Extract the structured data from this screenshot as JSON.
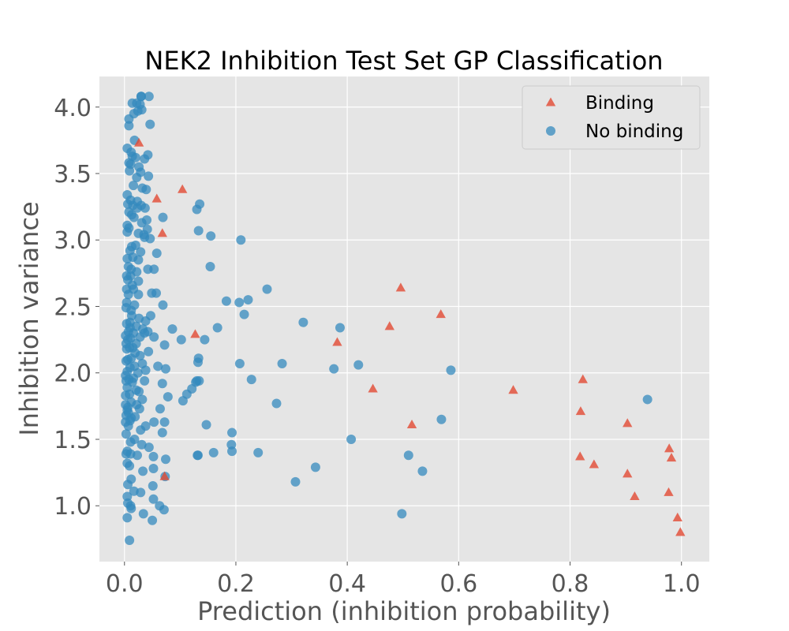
{
  "chart_data": {
    "type": "scatter",
    "title": "NEK2 Inhibition Test Set GP Classification",
    "xlabel": "Prediction (inhibition probability)",
    "ylabel": "Inhibition variance",
    "xlim": [
      -0.045,
      1.05
    ],
    "ylim": [
      0.58,
      4.23
    ],
    "xticks": [
      0.0,
      0.2,
      0.4,
      0.6,
      0.8,
      1.0
    ],
    "xtick_labels": [
      "0.0",
      "0.2",
      "0.4",
      "0.6",
      "0.8",
      "1.0"
    ],
    "yticks": [
      1.0,
      1.5,
      2.0,
      2.5,
      3.0,
      3.5,
      4.0
    ],
    "ytick_labels": [
      "1.0",
      "1.5",
      "2.0",
      "2.5",
      "3.0",
      "3.5",
      "4.0"
    ],
    "grid": true,
    "legend_position": "top-right",
    "series": [
      {
        "name": "Binding",
        "marker": "triangle",
        "color": "#E24A33",
        "x": [
          0.026,
          0.058,
          0.104,
          0.068,
          0.127,
          0.072,
          0.496,
          0.568,
          0.476,
          0.382,
          0.446,
          0.516,
          0.698,
          0.823,
          0.819,
          0.903,
          0.818,
          0.843,
          0.903,
          0.916,
          0.978,
          0.982,
          0.977,
          0.993,
          0.998
        ],
        "y": [
          3.73,
          3.31,
          3.38,
          3.05,
          2.29,
          1.22,
          2.64,
          2.44,
          2.35,
          2.23,
          1.88,
          1.61,
          1.87,
          1.95,
          1.71,
          1.62,
          1.37,
          1.31,
          1.24,
          1.07,
          1.43,
          1.36,
          1.1,
          0.91,
          0.8
        ]
      },
      {
        "name": "No binding",
        "marker": "circle",
        "color": "#348ABD",
        "x": [
          0.03,
          0.03,
          0.044,
          0.014,
          0.022,
          0.028,
          0.008,
          0.031,
          0.046,
          0.017,
          0.024,
          0.008,
          0.018,
          0.042,
          0.005,
          0.012,
          0.036,
          0.014,
          0.02,
          0.008,
          0.011,
          0.026,
          0.043,
          0.029,
          0.022,
          0.009,
          0.032,
          0.005,
          0.016,
          0.039,
          0.023,
          0.011,
          0.006,
          0.03,
          0.015,
          0.023,
          0.008,
          0.013,
          0.037,
          0.017,
          0.04,
          0.031,
          0.005,
          0.008,
          0.041,
          0.005,
          0.025,
          0.035,
          0.036,
          0.046,
          0.013,
          0.02,
          0.01,
          0.029,
          0.005,
          0.015,
          0.058,
          0.007,
          0.025,
          0.069,
          0.012,
          0.004,
          0.022,
          0.042,
          0.053,
          0.011,
          0.006,
          0.025,
          0.004,
          0.014,
          0.016,
          0.025,
          0.007,
          0.004,
          0.049,
          0.057,
          0.018,
          0.003,
          0.012,
          0.069,
          0.013,
          0.026,
          0.004,
          0.01,
          0.038,
          0.021,
          0.047,
          0.01,
          0.033,
          0.007,
          0.016,
          0.002,
          0.036,
          0.042,
          0.028,
          0.011,
          0.006,
          0.053,
          0.003,
          0.021,
          0.072,
          0.015,
          0.009,
          0.004,
          0.043,
          0.019,
          0.028,
          0.012,
          0.003,
          0.006,
          0.032,
          0.018,
          0.074,
          0.01,
          0.005,
          0.002,
          0.038,
          0.024,
          0.016,
          0.06,
          0.008,
          0.003,
          0.036,
          0.014,
          0.068,
          0.021,
          0.005,
          0.026,
          0.009,
          0.002,
          0.032,
          0.078,
          0.012,
          0.002,
          0.022,
          0.006,
          0.005,
          0.027,
          0.064,
          0.007,
          0.072,
          0.003,
          0.019,
          0.012,
          0.01,
          0.038,
          0.002,
          0.053,
          0.007,
          0.029,
          0.003,
          0.068,
          0.018,
          0.011,
          0.031,
          0.044,
          0.005,
          0.003,
          0.011,
          0.023,
          0.052,
          0.074,
          0.005,
          0.009,
          0.052,
          0.033,
          0.073,
          0.012,
          0.006,
          0.051,
          0.017,
          0.005,
          0.135,
          0.13,
          0.133,
          0.133,
          0.155,
          0.154,
          0.209,
          0.183,
          0.206,
          0.215,
          0.222,
          0.256,
          0.132,
          0.13,
          0.134,
          0.086,
          0.102,
          0.167,
          0.144,
          0.131,
          0.207,
          0.228,
          0.128,
          0.121,
          0.112,
          0.105,
          0.273,
          0.283,
          0.321,
          0.387,
          0.376,
          0.42,
          0.147,
          0.193,
          0.192,
          0.193,
          0.16,
          0.24,
          0.132,
          0.307,
          0.343,
          0.407,
          0.51,
          0.535,
          0.586,
          0.569,
          0.498,
          0.939
        ],
        "y": [
          4.08,
          4.08,
          4.08,
          4.03,
          4.03,
          4.02,
          3.91,
          3.98,
          3.87,
          3.95,
          3.97,
          3.86,
          3.75,
          3.64,
          3.69,
          3.66,
          3.61,
          3.63,
          3.62,
          3.58,
          3.57,
          3.55,
          3.48,
          3.51,
          3.47,
          3.52,
          3.39,
          3.34,
          3.41,
          3.38,
          3.29,
          3.3,
          3.27,
          3.26,
          3.26,
          3.24,
          3.21,
          3.19,
          3.24,
          3.17,
          3.15,
          3.13,
          3.11,
          3.09,
          3.08,
          3.06,
          3.05,
          3.04,
          3.02,
          3.01,
          2.95,
          2.96,
          2.92,
          2.91,
          2.86,
          2.87,
          2.9,
          2.8,
          2.85,
          3.17,
          2.78,
          2.73,
          2.76,
          2.78,
          2.78,
          2.73,
          2.7,
          2.69,
          2.63,
          2.66,
          2.63,
          2.59,
          2.59,
          2.53,
          2.6,
          2.6,
          2.51,
          2.49,
          2.47,
          2.51,
          2.43,
          2.41,
          2.37,
          2.38,
          2.39,
          2.35,
          2.43,
          2.34,
          2.33,
          2.31,
          2.3,
          2.28,
          2.3,
          2.31,
          2.27,
          2.26,
          2.25,
          2.27,
          2.22,
          2.22,
          2.21,
          2.19,
          2.19,
          2.18,
          2.16,
          2.15,
          2.13,
          2.11,
          2.09,
          2.1,
          2.07,
          2.05,
          2.03,
          2.04,
          2.01,
          1.98,
          2.02,
          2.0,
          1.96,
          2.05,
          1.95,
          1.94,
          1.94,
          1.93,
          1.92,
          1.87,
          1.89,
          1.86,
          1.84,
          1.83,
          1.8,
          1.82,
          1.78,
          1.76,
          1.76,
          1.74,
          1.72,
          1.73,
          1.73,
          1.7,
          1.63,
          1.68,
          1.67,
          1.66,
          1.64,
          1.6,
          1.63,
          1.63,
          1.6,
          1.57,
          1.54,
          1.55,
          1.5,
          1.48,
          1.46,
          1.44,
          1.41,
          1.39,
          1.39,
          1.38,
          1.37,
          1.35,
          1.32,
          1.3,
          1.28,
          1.26,
          1.22,
          1.2,
          1.16,
          1.15,
          1.11,
          1.07,
          3.27,
          3.23,
          3.07,
          2.11,
          3.03,
          2.8,
          3.0,
          2.54,
          2.53,
          2.44,
          2.55,
          2.63,
          2.08,
          1.94,
          1.94,
          2.33,
          2.25,
          2.34,
          2.25,
          1.38,
          2.07,
          1.95,
          1.93,
          1.88,
          1.84,
          1.79,
          1.77,
          2.07,
          2.38,
          2.34,
          2.03,
          2.06,
          1.61,
          1.55,
          1.46,
          1.41,
          1.4,
          1.4,
          1.38,
          1.18,
          1.29,
          1.5,
          1.38,
          1.26,
          2.02,
          1.65,
          0.94,
          1.8
        ]
      },
      {
        "name": "No binding",
        "marker": "circle",
        "color": "#348ABD",
        "x": [
          0.006,
          0.011,
          0.029,
          0.034,
          0.052,
          0.063,
          0.05,
          0.071,
          0.009,
          0.005,
          0.012
        ],
        "y": [
          1.02,
          1.0,
          1.1,
          0.94,
          1.05,
          1.0,
          0.89,
          0.97,
          0.74,
          0.91,
          0.98
        ]
      }
    ]
  }
}
